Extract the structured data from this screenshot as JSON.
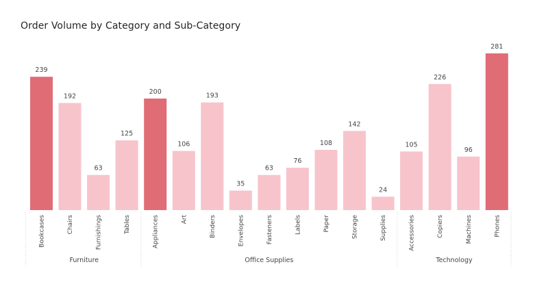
{
  "chart_data": {
    "type": "bar",
    "title": "Order Volume by Category and Sub-Category",
    "xlabel": "",
    "ylabel": "",
    "ylim": [
      0,
      281
    ],
    "grid": false,
    "data_labels": true,
    "colors": {
      "highlight": "#e06c75",
      "normal": "#f7c4cb",
      "text": "#444444",
      "divider": "#cfcfcf"
    },
    "groups": [
      {
        "label": "Furniture",
        "bars": [
          {
            "category": "Bookcases",
            "value": 239,
            "highlight": true
          },
          {
            "category": "Chairs",
            "value": 192,
            "highlight": false
          },
          {
            "category": "Furnishings",
            "value": 63,
            "highlight": false
          },
          {
            "category": "Tables",
            "value": 125,
            "highlight": false
          }
        ]
      },
      {
        "label": "Office Supplies",
        "bars": [
          {
            "category": "Appliances",
            "value": 200,
            "highlight": true
          },
          {
            "category": "Art",
            "value": 106,
            "highlight": false
          },
          {
            "category": "Binders",
            "value": 193,
            "highlight": false
          },
          {
            "category": "Envelopes",
            "value": 35,
            "highlight": false
          },
          {
            "category": "Fasteners",
            "value": 63,
            "highlight": false
          },
          {
            "category": "Labels",
            "value": 76,
            "highlight": false
          },
          {
            "category": "Paper",
            "value": 108,
            "highlight": false
          },
          {
            "category": "Storage",
            "value": 142,
            "highlight": false
          },
          {
            "category": "Supplies",
            "value": 24,
            "highlight": false
          }
        ]
      },
      {
        "label": "Technology",
        "bars": [
          {
            "category": "Accessories",
            "value": 105,
            "highlight": false
          },
          {
            "category": "Copiers",
            "value": 226,
            "highlight": false
          },
          {
            "category": "Machines",
            "value": 96,
            "highlight": false
          },
          {
            "category": "Phones",
            "value": 281,
            "highlight": true
          }
        ]
      }
    ]
  }
}
